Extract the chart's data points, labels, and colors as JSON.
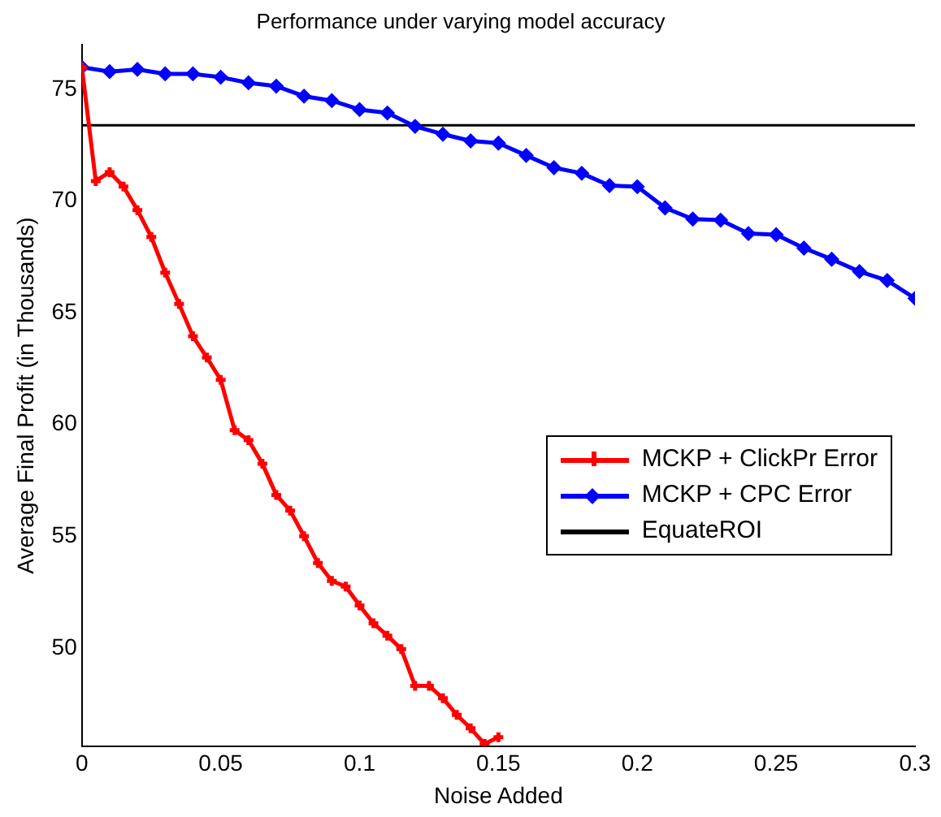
{
  "chart_data": {
    "type": "line",
    "title": "Performance under varying model accuracy",
    "xlabel": "Noise Added",
    "ylabel": "Average Final Profit (in Thousands)",
    "xlim": [
      0,
      0.3
    ],
    "xticks": [
      0,
      0.05,
      0.1,
      0.15,
      0.2,
      0.25,
      0.3
    ],
    "ylim": [
      45.6,
      77
    ],
    "yticks": [
      50,
      55,
      60,
      65,
      70,
      75
    ],
    "grid": false,
    "legend": "right",
    "series": [
      {
        "name": "MCKP + ClickPr Error",
        "color": "#ff0000",
        "marker": "cross",
        "x": [
          0,
          0.005,
          0.01,
          0.015,
          0.02,
          0.025,
          0.03,
          0.035,
          0.04,
          0.045,
          0.05,
          0.055,
          0.06,
          0.065,
          0.07,
          0.075,
          0.08,
          0.085,
          0.09,
          0.095,
          0.1,
          0.105,
          0.11,
          0.115,
          0.12,
          0.125,
          0.13,
          0.135,
          0.14,
          0.145,
          0.15
        ],
        "values": [
          76.0,
          70.9,
          71.3,
          70.65,
          69.6,
          68.4,
          66.8,
          65.4,
          63.95,
          63.0,
          62.0,
          59.75,
          59.3,
          58.25,
          56.85,
          56.15,
          55.0,
          53.8,
          53.0,
          52.75,
          51.9,
          51.1,
          50.55,
          49.95,
          48.3,
          48.3,
          47.75,
          47.0,
          46.4,
          45.7,
          46.0
        ]
      },
      {
        "name": "MCKP + CPC Error",
        "color": "#0000ff",
        "marker": "diamond",
        "x": [
          0,
          0.01,
          0.02,
          0.03,
          0.04,
          0.05,
          0.06,
          0.07,
          0.08,
          0.09,
          0.1,
          0.11,
          0.12,
          0.13,
          0.14,
          0.15,
          0.16,
          0.17,
          0.18,
          0.19,
          0.2,
          0.21,
          0.22,
          0.23,
          0.24,
          0.25,
          0.26,
          0.27,
          0.28,
          0.29,
          0.3
        ],
        "values": [
          76.0,
          75.8,
          75.9,
          75.7,
          75.7,
          75.55,
          75.3,
          75.15,
          74.7,
          74.5,
          74.1,
          73.95,
          73.35,
          73.0,
          72.7,
          72.6,
          72.05,
          71.5,
          71.25,
          70.7,
          70.65,
          69.7,
          69.2,
          69.15,
          68.55,
          68.5,
          67.9,
          67.4,
          66.85,
          66.45,
          65.65
        ]
      },
      {
        "name": "EquateROI",
        "color": "#000000",
        "marker": "none",
        "x": [
          0,
          0.3
        ],
        "values": [
          73.4,
          73.4
        ]
      }
    ]
  }
}
